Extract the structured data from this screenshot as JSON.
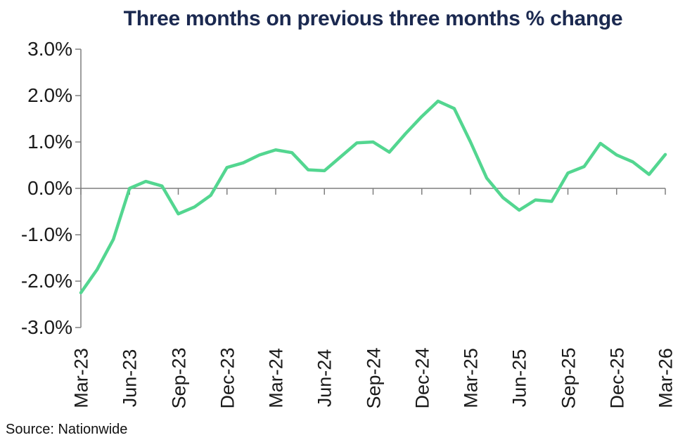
{
  "chart_data": {
    "type": "line",
    "title": "Three months on previous three months % change",
    "source": "Source: Nationwide",
    "xlabel": "",
    "ylabel": "",
    "ylim": [
      -3.0,
      3.0
    ],
    "grid": "zero baseline only, no gridlines",
    "legend": "none",
    "y_tick_labels": [
      "3.0%",
      "2.0%",
      "1.0%",
      "0.0%",
      "-1.0%",
      "-2.0%",
      "-3.0%"
    ],
    "x_tick_labels": [
      "Mar-23",
      "Jun-23",
      "Sep-23",
      "Dec-23",
      "Mar-24",
      "Jun-24",
      "Sep-24",
      "Dec-24",
      "Mar-25",
      "Jun-25",
      "Sep-25",
      "Dec-25",
      "Mar-26"
    ],
    "months": [
      "Mar-23",
      "Apr-23",
      "May-23",
      "Jun-23",
      "Jul-23",
      "Aug-23",
      "Sep-23",
      "Oct-23",
      "Nov-23",
      "Dec-23",
      "Jan-24",
      "Feb-24",
      "Mar-24",
      "Apr-24",
      "May-24",
      "Jun-24",
      "Jul-24",
      "Aug-24",
      "Sep-24",
      "Oct-24",
      "Nov-24",
      "Dec-24",
      "Jan-25",
      "Feb-25",
      "Mar-25",
      "Apr-25",
      "May-25",
      "Jun-25",
      "Jul-25",
      "Aug-25",
      "Sep-25",
      "Oct-25",
      "Nov-25",
      "Dec-25",
      "Jan-26",
      "Feb-26",
      "Mar-26"
    ],
    "series": [
      {
        "name": "3 months on previous 3 months % change",
        "color": "#53d690",
        "values": [
          -2.25,
          -1.75,
          -1.1,
          0.0,
          0.15,
          0.05,
          -0.55,
          -0.4,
          -0.15,
          0.45,
          0.55,
          0.72,
          0.83,
          0.77,
          0.4,
          0.38,
          0.68,
          0.98,
          1.0,
          0.78,
          1.18,
          1.55,
          1.88,
          1.72,
          1.0,
          0.22,
          -0.2,
          -0.47,
          -0.25,
          -0.28,
          0.33,
          0.47,
          0.97,
          0.72,
          0.57,
          0.3,
          0.73
        ]
      }
    ],
    "colors": {
      "line": "#53d690",
      "title": "#1b2950",
      "axis": "#7f7f7f",
      "tick_text": "#1a1a1a"
    }
  }
}
